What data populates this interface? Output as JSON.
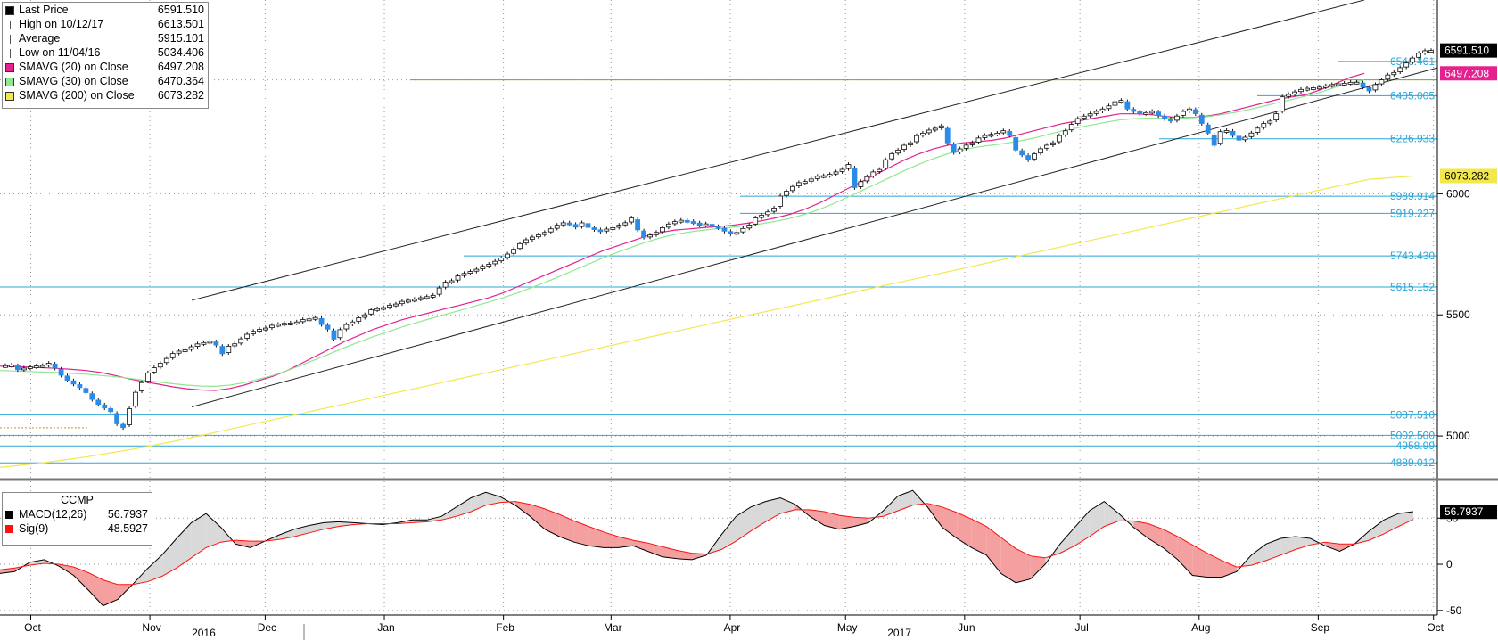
{
  "legend": {
    "items": [
      {
        "label": "Last Price",
        "value": "6591.510",
        "marker": "square",
        "color": "#000000"
      },
      {
        "label": "High on 10/12/17",
        "value": "6613.501",
        "marker": "high",
        "color": "#555555"
      },
      {
        "label": "Average",
        "value": "5915.101",
        "marker": "avg",
        "color": "#555555"
      },
      {
        "label": "Low on 11/04/16",
        "value": "5034.406",
        "marker": "low",
        "color": "#555555"
      },
      {
        "label": "SMAVG (20) on Close",
        "value": "6497.208",
        "marker": "square",
        "color": "#e4218f"
      },
      {
        "label": "SMAVG (30) on Close",
        "value": "6470.364",
        "marker": "square",
        "color": "#8fe88f"
      },
      {
        "label": "SMAVG (200) on Close",
        "value": "6073.282",
        "marker": "square",
        "color": "#f3e84a"
      }
    ]
  },
  "macd_legend": {
    "title": "CCMP",
    "items": [
      {
        "label": "MACD(12,26)",
        "value": "56.7937",
        "color": "#000000"
      },
      {
        "label": "Sig(9)",
        "value": "48.5927",
        "color": "#ff1010"
      }
    ]
  },
  "price_tags": [
    {
      "text": "6591.510",
      "bg": "#000000",
      "fg": "#ffffff",
      "y": 6591.51
    },
    {
      "text": "6497.208",
      "bg": "#e4218f",
      "fg": "#ffffff",
      "y": 6497.208
    },
    {
      "text": "6073.282",
      "bg": "#f3e84a",
      "fg": "#000000",
      "y": 6073.282
    }
  ],
  "macd_tags": [
    {
      "text": "56.7937",
      "bg": "#000000",
      "fg": "#ffffff",
      "y": 56.7937
    }
  ],
  "chart_data": [
    {
      "type": "candlestick",
      "title": "CCMP",
      "ylim": [
        4820,
        6800
      ],
      "yticks": [
        5000,
        5500,
        6000
      ],
      "xticks": [
        {
          "label": "Oct",
          "x": "2016-10-01"
        },
        {
          "label": "Nov",
          "x": "2016-11-01"
        },
        {
          "label": "Dec",
          "x": "2016-12-01"
        },
        {
          "label": "Jan",
          "x": "2017-01-01"
        },
        {
          "label": "Feb",
          "x": "2017-02-01"
        },
        {
          "label": "Mar",
          "x": "2017-03-01"
        },
        {
          "label": "Apr",
          "x": "2017-04-01"
        },
        {
          "label": "May",
          "x": "2017-05-01"
        },
        {
          "label": "Jun",
          "x": "2017-06-01"
        },
        {
          "label": "Jul",
          "x": "2017-07-01"
        },
        {
          "label": "Aug",
          "x": "2017-08-01"
        },
        {
          "label": "Sep",
          "x": "2017-09-01"
        },
        {
          "label": "Oct",
          "x": "2017-10-01"
        }
      ],
      "year_labels": [
        {
          "label": "2016",
          "x": "2016-11-15"
        },
        {
          "label": "2017",
          "x": "2017-05-15"
        }
      ],
      "levels": [
        {
          "label": "6546.461",
          "y": 6546.461
        },
        {
          "label": "6405.005",
          "y": 6405.005
        },
        {
          "label": "6226.933",
          "y": 6226.933
        },
        {
          "label": "5989.914",
          "y": 5989.914
        },
        {
          "label": "5919.227",
          "y": 5919.227
        },
        {
          "label": "5743.430",
          "y": 5743.43
        },
        {
          "label": "5615.152",
          "y": 5615.152
        },
        {
          "label": "5087.510",
          "y": 5087.51
        },
        {
          "label": "5002.500",
          "y": 5002.5
        },
        {
          "label": "4958.99",
          "y": 4958.99
        },
        {
          "label": "4889.012",
          "y": 4889.012
        }
      ],
      "series": [
        {
          "name": "Last Price",
          "closes": [
            5290.2,
            5292.7,
            5273.5,
            5280.1,
            5285.3,
            5288.9,
            5290.6,
            5300.0,
            5280.2,
            5250.7,
            5230.1,
            5214.3,
            5199.6,
            5178.7,
            5150.9,
            5130.2,
            5115.7,
            5100.4,
            5050.3,
            5034.4,
            5112.6,
            5180.2,
            5220.3,
            5260.5,
            5281.8,
            5300.2,
            5320.0,
            5340.3,
            5350.1,
            5355.6,
            5368.2,
            5380.0,
            5385.7,
            5390.8,
            5375.2,
            5339.4,
            5370.5,
            5380.5,
            5400.8,
            5420.0,
            5432.1,
            5440.1,
            5445.3,
            5456.9,
            5460.7,
            5465.0,
            5466.2,
            5470.5,
            5480.4,
            5483.3,
            5489.0,
            5460.3,
            5440.7,
            5400.2,
            5438.6,
            5460.1,
            5470.6,
            5487.9,
            5500.4,
            5520.6,
            5525.7,
            5530.2,
            5540.0,
            5544.6,
            5555.6,
            5560.1,
            5564.0,
            5570.5,
            5575.2,
            5580.4,
            5610.9,
            5635.0,
            5640.7,
            5660.8,
            5670.8,
            5679.0,
            5688.3,
            5700.2,
            5709.1,
            5720.9,
            5734.2,
            5750.9,
            5770.7,
            5794.1,
            5810.0,
            5820.9,
            5830.1,
            5840.2,
            5855.3,
            5870.1,
            5880.3,
            5875.0,
            5862.2,
            5880.0,
            5861.0,
            5852.2,
            5844.7,
            5854.0,
            5860.1,
            5870.2,
            5880.4,
            5900.1,
            5850.9,
            5820.1,
            5829.5,
            5840.3,
            5860.0,
            5875.1,
            5885.0,
            5890.5,
            5886.1,
            5880.8,
            5870.3,
            5875.7,
            5865.1,
            5860.0,
            5845.5,
            5834.7,
            5840.1,
            5856.5,
            5870.7,
            5900.1,
            5911.7,
            5925.1,
            5940.9,
            5990.4,
            6010.2,
            6030.0,
            6045.9,
            6050.4,
            6060.8,
            6072.0,
            6074.5,
            6080.0,
            6090.2,
            6100.8,
            6120.7,
            6025.5,
            6050.0,
            6070.3,
            6090.0,
            6100.2,
            6140.5,
            6165.7,
            6180.3,
            6200.2,
            6210.4,
            6240.0,
            6250.3,
            6262.7,
            6270.3,
            6280.3,
            6210.0,
            6170.5,
            6185.3,
            6200.7,
            6210.4,
            6230.0,
            6240.5,
            6245.0,
            6250.0,
            6260.2,
            6240.5,
            6180.7,
            6160.5,
            6140.0,
            6165.1,
            6185.8,
            6200.4,
            6210.3,
            6240.2,
            6260.0,
            6286.3,
            6310.4,
            6320.5,
            6330.0,
            6340.1,
            6350.0,
            6362.9,
            6380.0,
            6385.4,
            6350.2,
            6340.1,
            6330.5,
            6335.1,
            6340.2,
            6322.8,
            6310.0,
            6300.5,
            6320.8,
            6340.0,
            6350.2,
            6330.6,
            6290.1,
            6250.4,
            6200.0,
            6256.4,
            6260.9,
            6240.5,
            6221.3,
            6233.3,
            6250.7,
            6270.9,
            6290.1,
            6300.0,
            6330.3,
            6400.0,
            6410.2,
            6420.4,
            6430.8,
            6435.2,
            6437.5,
            6440.1,
            6445.8,
            6450.4,
            6454.1,
            6456.2,
            6460.0,
            6460.4,
            6440.7,
            6424.7,
            6450.9,
            6470.2,
            6490.4,
            6500.6,
            6520.5,
            6540.0,
            6560.3,
            6580.1,
            6590.3,
            6591.5
          ]
        },
        {
          "name": "SMAVG (20) on Close",
          "values": [
            5288,
            5287,
            5284,
            5282,
            5279,
            5275,
            5270,
            5262,
            5250,
            5236,
            5224,
            5214,
            5203,
            5195,
            5190,
            5188,
            5196,
            5210,
            5228,
            5246,
            5270,
            5300,
            5330,
            5360,
            5390,
            5415,
            5440,
            5460,
            5480,
            5495,
            5510,
            5525,
            5540,
            5555,
            5570,
            5590,
            5615,
            5640,
            5665,
            5690,
            5715,
            5740,
            5765,
            5785,
            5805,
            5825,
            5840,
            5850,
            5855,
            5860,
            5865,
            5870,
            5878,
            5888,
            5900,
            5915,
            5935,
            5960,
            5990,
            6020,
            6050,
            6080,
            6110,
            6140,
            6165,
            6185,
            6200,
            6210,
            6215,
            6220,
            6230,
            6245,
            6260,
            6275,
            6290,
            6300,
            6310,
            6320,
            6330,
            6330,
            6328,
            6320,
            6315,
            6315,
            6320,
            6330,
            6345,
            6360,
            6375,
            6390,
            6400,
            6410,
            6430,
            6455,
            6480,
            6497
          ]
        },
        {
          "name": "SMAVG (30) on Close",
          "values": [
            5270,
            5268,
            5266,
            5264,
            5262,
            5258,
            5255,
            5250,
            5245,
            5238,
            5230,
            5223,
            5216,
            5210,
            5206,
            5205,
            5210,
            5220,
            5234,
            5250,
            5270,
            5292,
            5316,
            5340,
            5365,
            5388,
            5410,
            5430,
            5450,
            5468,
            5485,
            5502,
            5518,
            5535,
            5552,
            5570,
            5590,
            5612,
            5635,
            5660,
            5685,
            5710,
            5735,
            5758,
            5780,
            5800,
            5818,
            5832,
            5842,
            5850,
            5856,
            5862,
            5868,
            5876,
            5886,
            5898,
            5914,
            5934,
            5958,
            5985,
            6012,
            6040,
            6068,
            6096,
            6122,
            6145,
            6165,
            6180,
            6192,
            6200,
            6208,
            6218,
            6230,
            6245,
            6260,
            6272,
            6284,
            6295,
            6305,
            6310,
            6312,
            6312,
            6312,
            6314,
            6318,
            6326,
            6336,
            6348,
            6362,
            6376,
            6390,
            6404,
            6420,
            6440,
            6458,
            6470
          ]
        },
        {
          "name": "SMAVG (200) on Close",
          "values": [
            4870,
            4890,
            4915,
            4945,
            4980,
            5020,
            5060,
            5100,
            5140,
            5180,
            5220,
            5260,
            5300,
            5340,
            5380,
            5420,
            5460,
            5500,
            5540,
            5580,
            5620,
            5660,
            5700,
            5740,
            5780,
            5820,
            5860,
            5900,
            5940,
            5980,
            6020,
            6060,
            6073
          ]
        }
      ]
    },
    {
      "type": "line",
      "title": "CCMP",
      "ylim": [
        -55,
        85
      ],
      "yticks": [
        -50,
        0,
        50
      ],
      "series": [
        {
          "name": "MACD(12,26)",
          "values": [
            -10,
            -8,
            2,
            5,
            -2,
            -12,
            -28,
            -45,
            -38,
            -22,
            -5,
            10,
            28,
            45,
            55,
            40,
            22,
            18,
            25,
            32,
            38,
            42,
            45,
            46,
            45,
            44,
            43,
            45,
            48,
            48,
            52,
            62,
            72,
            78,
            73,
            64,
            52,
            38,
            30,
            24,
            20,
            18,
            18,
            20,
            14,
            8,
            6,
            5,
            10,
            32,
            52,
            62,
            68,
            72,
            65,
            52,
            42,
            38,
            41,
            45,
            58,
            74,
            80,
            62,
            40,
            28,
            18,
            10,
            -10,
            -20,
            -16,
            0,
            22,
            40,
            58,
            68,
            55,
            40,
            28,
            18,
            5,
            -12,
            -14,
            -14,
            -8,
            10,
            22,
            28,
            30,
            28,
            20,
            14,
            22,
            36,
            48,
            55,
            57
          ]
        },
        {
          "name": "Sig(9)",
          "values": [
            -6,
            -4,
            -1,
            1,
            0,
            -3,
            -9,
            -17,
            -22,
            -22,
            -19,
            -13,
            -4,
            7,
            18,
            24,
            26,
            25,
            25,
            27,
            30,
            34,
            38,
            41,
            43,
            44,
            44,
            44,
            45,
            46,
            48,
            52,
            57,
            64,
            67,
            68,
            65,
            60,
            54,
            47,
            41,
            35,
            30,
            26,
            23,
            19,
            15,
            12,
            11,
            16,
            25,
            36,
            46,
            55,
            59,
            59,
            57,
            53,
            51,
            50,
            52,
            58,
            64,
            66,
            62,
            56,
            49,
            41,
            29,
            17,
            9,
            7,
            12,
            20,
            30,
            41,
            47,
            47,
            44,
            38,
            30,
            21,
            12,
            4,
            -3,
            -1,
            4,
            10,
            16,
            21,
            24,
            22,
            22,
            26,
            33,
            41,
            48.59
          ]
        }
      ]
    }
  ]
}
